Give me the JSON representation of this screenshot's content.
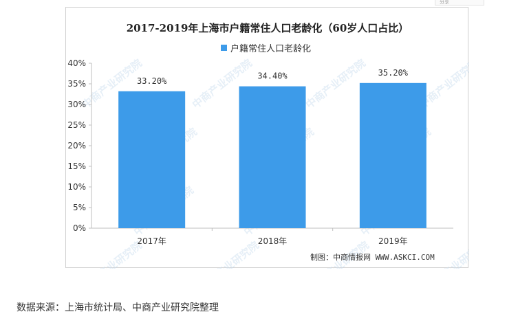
{
  "corner_badge": "分享",
  "chart_data": {
    "type": "bar",
    "title": "2017-2019年上海市户籍常住人口老龄化（60岁人口占比）",
    "categories": [
      "2017年",
      "2018年",
      "2019年"
    ],
    "series": [
      {
        "name": "户籍常住人口老龄化",
        "values": [
          33.2,
          34.4,
          35.2
        ],
        "labels": [
          "33.20%",
          "34.40%",
          "35.20%"
        ],
        "color": "#3d9be9"
      }
    ],
    "ylim": [
      0,
      40
    ],
    "yticks": [
      "0%",
      "5%",
      "10%",
      "15%",
      "20%",
      "25%",
      "30%",
      "35%",
      "40%"
    ],
    "xlabel": "",
    "ylabel": "",
    "grid": false,
    "legend": "top-center",
    "watermark": "中商产业研究院"
  },
  "chart_credit": "制图：中商情报网 WWW.ASKCI.COM",
  "source_text": "数据来源：上海市统计局、中商产业研究院整理"
}
